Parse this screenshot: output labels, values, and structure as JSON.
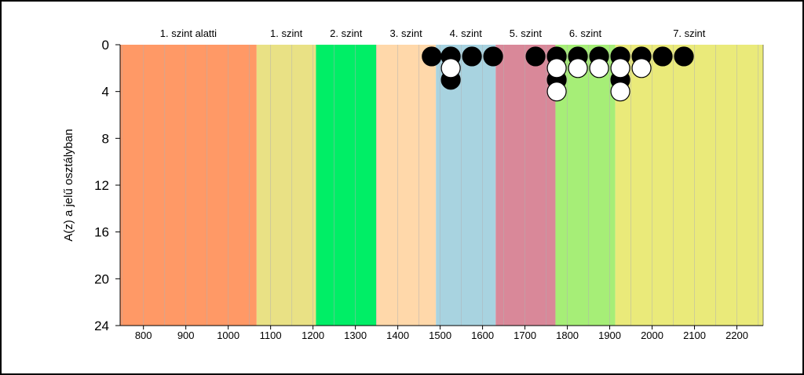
{
  "chart_data": {
    "type": "scatter",
    "title": "",
    "xlabel": "",
    "ylabel": "A(z) a jelű osztályban",
    "xlim": [
      745,
      2262
    ],
    "ylim": [
      0,
      24
    ],
    "y_inverted": true,
    "x_ticks": [
      800,
      900,
      1000,
      1100,
      1200,
      1300,
      1400,
      1500,
      1600,
      1700,
      1800,
      1900,
      2000,
      2100,
      2200
    ],
    "y_ticks": [
      0,
      4,
      8,
      12,
      16,
      20,
      24
    ],
    "minor_gridlines_x_step": 50,
    "bands": [
      {
        "label": "1. szint alatti",
        "from": 745,
        "to": 1067,
        "color": "#FF9966"
      },
      {
        "label": "1. szint",
        "from": 1067,
        "to": 1207,
        "color": "#E9E185"
      },
      {
        "label": "2. szint",
        "from": 1207,
        "to": 1349,
        "color": "#00EE66"
      },
      {
        "label": "3. szint",
        "from": 1349,
        "to": 1490,
        "color": "#FFD8AA"
      },
      {
        "label": "4. szint",
        "from": 1490,
        "to": 1631,
        "color": "#A8D3E0"
      },
      {
        "label": "5. szint",
        "from": 1631,
        "to": 1772,
        "color": "#D98899"
      },
      {
        "label": "6. szint",
        "from": 1772,
        "to": 1913,
        "color": "#A6EE77"
      },
      {
        "label": "7. szint",
        "from": 1913,
        "to": 2262,
        "color": "#EAEA7A"
      }
    ],
    "series": [
      {
        "marker": "black-circle",
        "color": "#000000",
        "points": [
          [
            1480,
            1
          ],
          [
            1525,
            1
          ],
          [
            1525,
            3
          ],
          [
            1575,
            1
          ],
          [
            1625,
            1
          ],
          [
            1725,
            1
          ],
          [
            1775,
            1
          ],
          [
            1775,
            3
          ],
          [
            1825,
            1
          ],
          [
            1875,
            1
          ],
          [
            1925,
            1
          ],
          [
            1925,
            3
          ],
          [
            1975,
            1
          ],
          [
            2025,
            1
          ],
          [
            2075,
            1
          ]
        ]
      },
      {
        "marker": "white-circle",
        "color": "#FFFFFF",
        "points": [
          [
            1525,
            2
          ],
          [
            1775,
            2
          ],
          [
            1775,
            4
          ],
          [
            1825,
            2
          ],
          [
            1875,
            2
          ],
          [
            1925,
            2
          ],
          [
            1925,
            4
          ],
          [
            1975,
            2
          ]
        ]
      }
    ]
  }
}
